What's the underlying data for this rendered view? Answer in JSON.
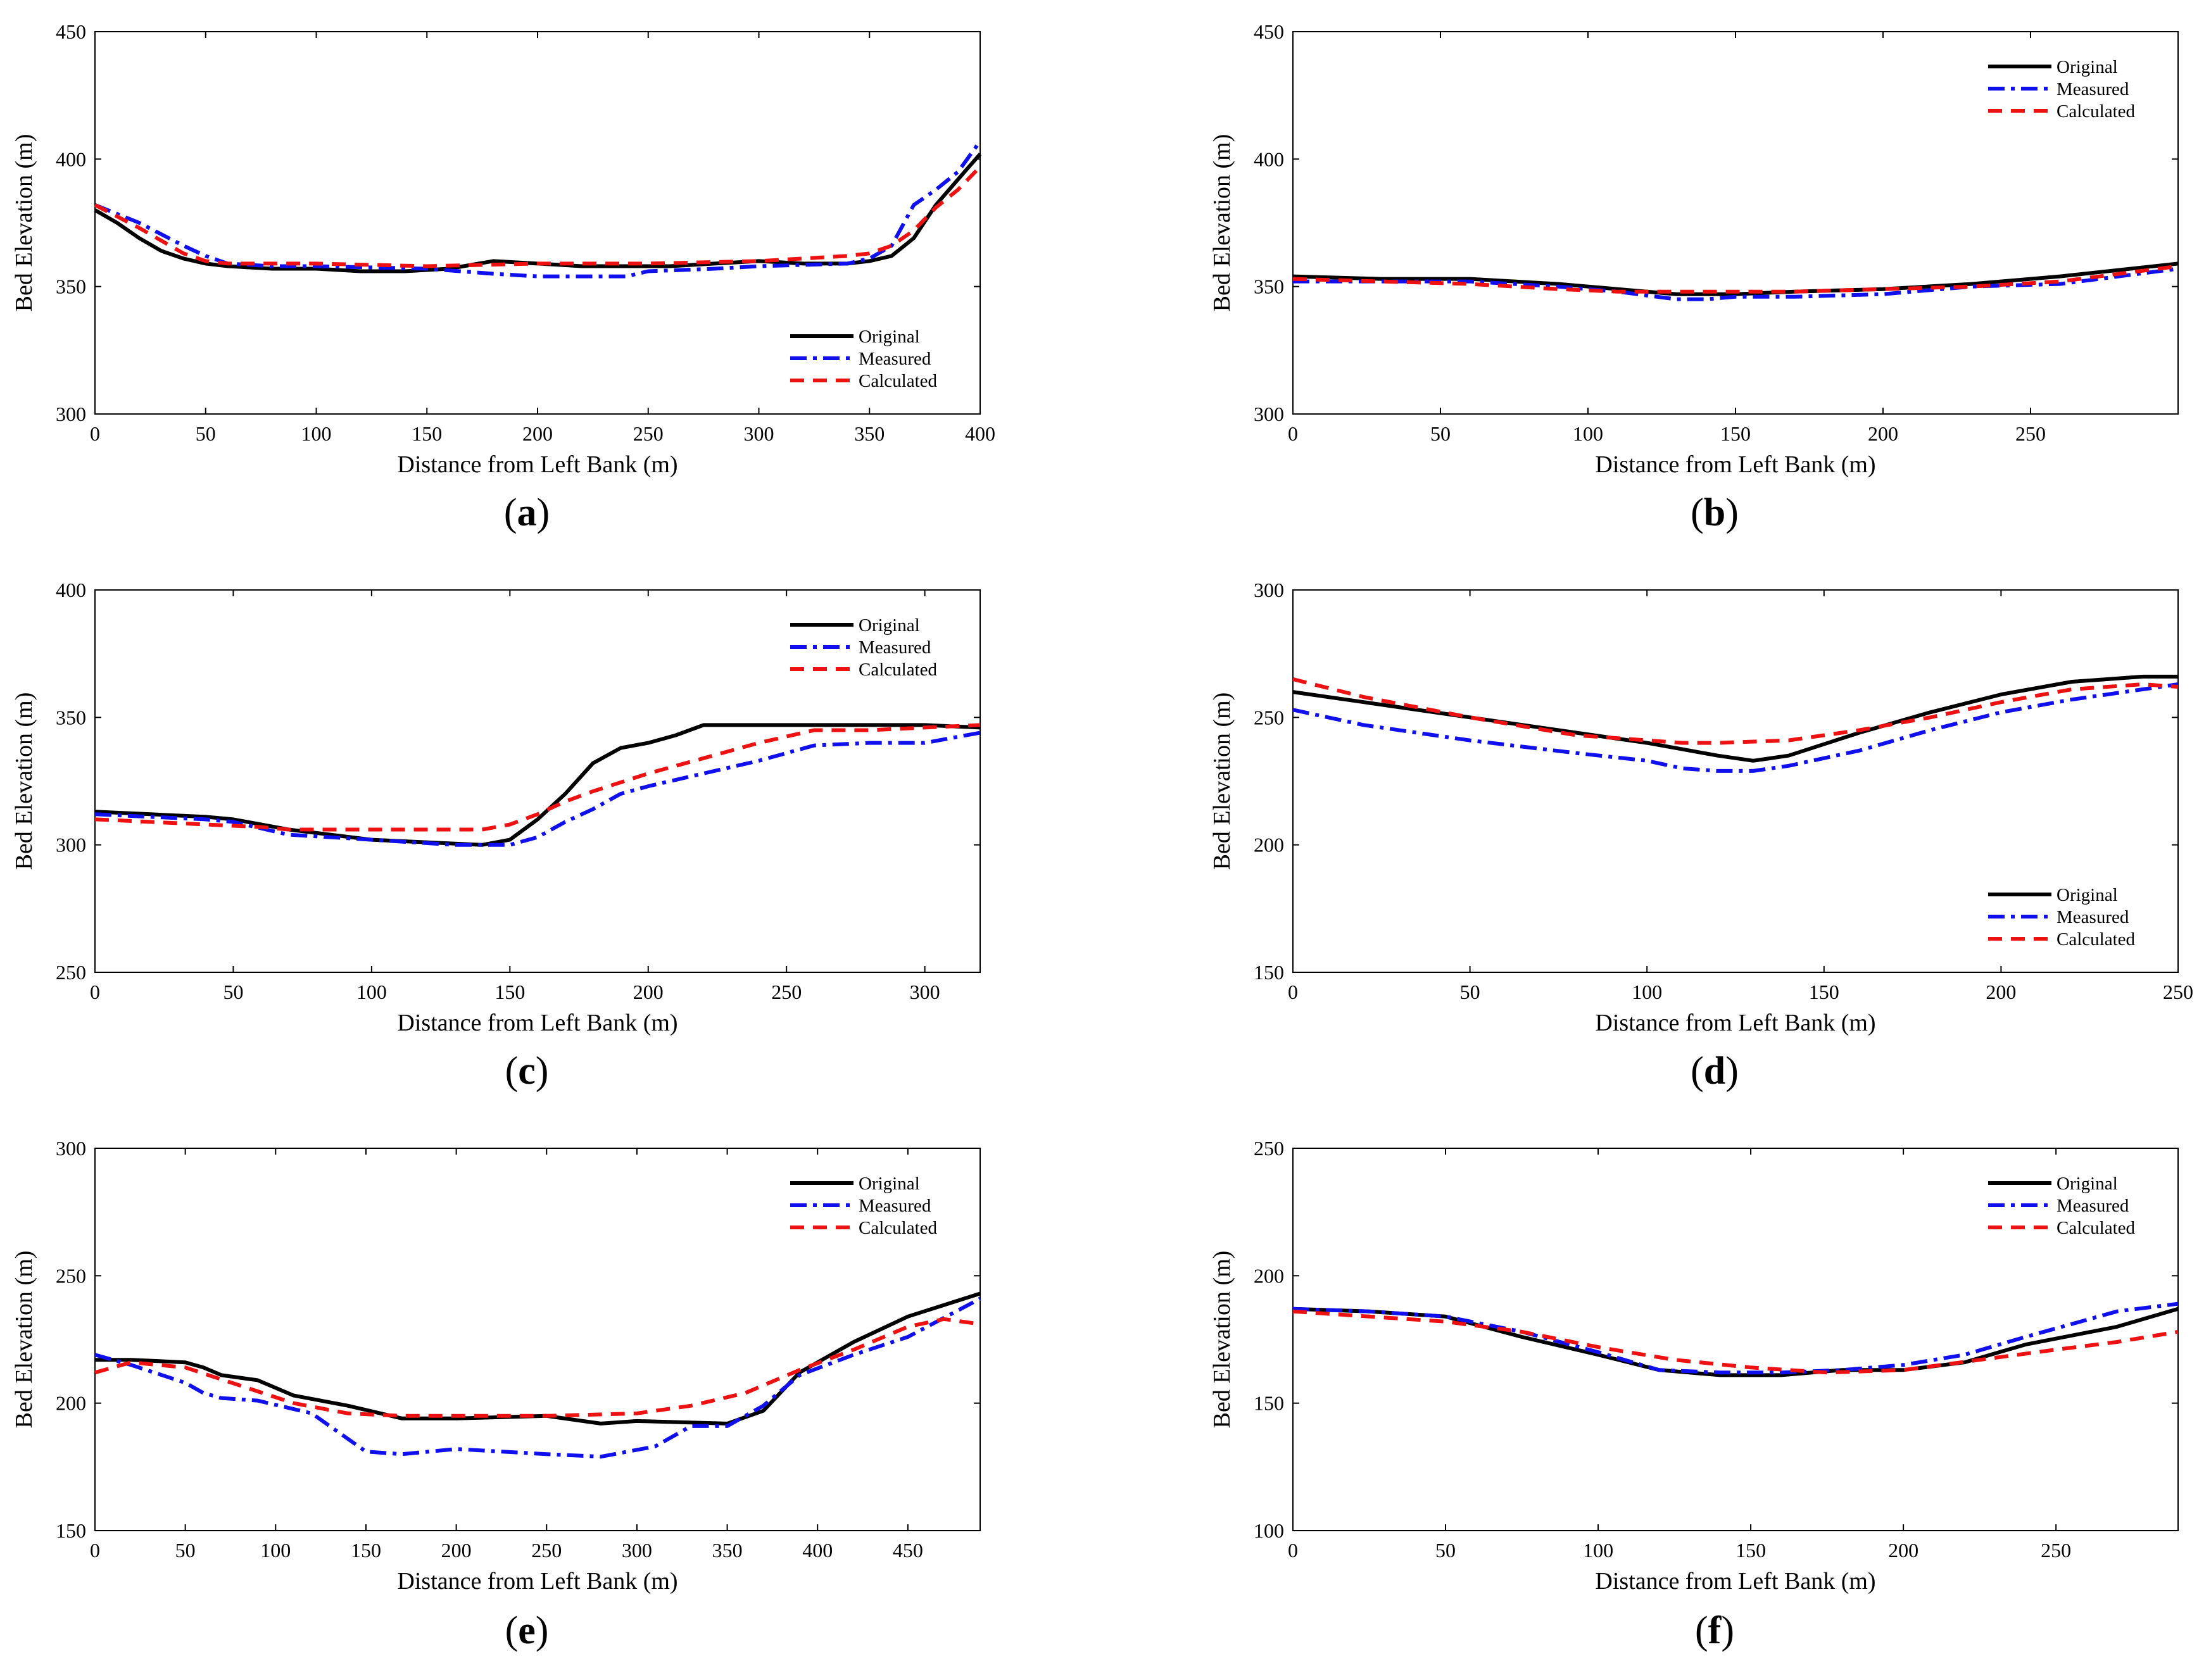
{
  "figure": {
    "series_names": [
      "Original",
      "Measured",
      "Calculated"
    ],
    "colors": {
      "Original": "#000000",
      "Measured": "#1010ee",
      "Calculated": "#ee1111"
    }
  },
  "chart_data": [
    {
      "id": "a",
      "type": "line",
      "panel_label": "a",
      "xlabel": "Distance from Left Bank (m)",
      "ylabel": "Bed Elevation (m)",
      "xlim": [
        0,
        400
      ],
      "ylim": [
        300,
        450
      ],
      "xticks": [
        0,
        50,
        100,
        150,
        200,
        250,
        300,
        350,
        400
      ],
      "yticks": [
        300,
        350,
        400,
        450
      ],
      "legend_position": "bottom-right",
      "series": [
        {
          "name": "Original",
          "x": [
            0,
            10,
            20,
            30,
            40,
            50,
            60,
            80,
            100,
            120,
            140,
            160,
            180,
            200,
            220,
            240,
            260,
            280,
            300,
            320,
            340,
            350,
            360,
            370,
            380,
            390,
            400
          ],
          "y": [
            380,
            375,
            369,
            364,
            361,
            359,
            358,
            357,
            357,
            356,
            356,
            357,
            360,
            359,
            358,
            358,
            358,
            359,
            360,
            359,
            359,
            360,
            362,
            369,
            382,
            392,
            402
          ]
        },
        {
          "name": "Measured",
          "x": [
            0,
            20,
            40,
            50,
            60,
            80,
            100,
            150,
            180,
            200,
            220,
            240,
            250,
            280,
            300,
            340,
            350,
            360,
            370,
            380,
            390,
            400
          ],
          "y": [
            382,
            375,
            366,
            362,
            359,
            358,
            358,
            357,
            355,
            354,
            354,
            354,
            356,
            357,
            358,
            359,
            361,
            366,
            382,
            388,
            395,
            407
          ]
        },
        {
          "name": "Calculated",
          "x": [
            0,
            20,
            40,
            50,
            60,
            80,
            100,
            150,
            200,
            250,
            300,
            320,
            340,
            350,
            360,
            370,
            380,
            390,
            400
          ],
          "y": [
            382,
            373,
            363,
            360,
            359,
            359,
            359,
            358,
            359,
            359,
            360,
            361,
            362,
            363,
            366,
            372,
            381,
            388,
            397
          ]
        }
      ]
    },
    {
      "id": "b",
      "type": "line",
      "panel_label": "b",
      "xlabel": "Distance from Left Bank (m)",
      "ylabel": "Bed Elevation (m)",
      "xlim": [
        0,
        300
      ],
      "ylim": [
        300,
        450
      ],
      "xticks": [
        0,
        50,
        100,
        150,
        200,
        250
      ],
      "yticks": [
        300,
        350,
        400,
        450
      ],
      "legend_position": "top-right",
      "series": [
        {
          "name": "Original",
          "x": [
            0,
            30,
            60,
            90,
            110,
            130,
            150,
            170,
            200,
            230,
            260,
            300
          ],
          "y": [
            354,
            353,
            353,
            351,
            349,
            347,
            347,
            348,
            349,
            351,
            354,
            359
          ]
        },
        {
          "name": "Measured",
          "x": [
            0,
            30,
            60,
            90,
            110,
            130,
            140,
            150,
            170,
            200,
            230,
            260,
            300
          ],
          "y": [
            352,
            352,
            352,
            350,
            348,
            345,
            345,
            346,
            346,
            347,
            350,
            351,
            357
          ]
        },
        {
          "name": "Calculated",
          "x": [
            0,
            30,
            60,
            90,
            110,
            130,
            150,
            170,
            200,
            230,
            260,
            300
          ],
          "y": [
            353,
            352,
            351,
            349,
            348,
            348,
            348,
            348,
            349,
            350,
            352,
            358
          ]
        }
      ]
    },
    {
      "id": "c",
      "type": "line",
      "panel_label": "c",
      "xlabel": "Distance from Left Bank (m)",
      "ylabel": "Bed Elevation (m)",
      "xlim": [
        0,
        320
      ],
      "ylim": [
        250,
        400
      ],
      "xticks": [
        0,
        50,
        100,
        150,
        200,
        250,
        300
      ],
      "yticks": [
        250,
        300,
        350,
        400
      ],
      "legend_position": "top-right",
      "series": [
        {
          "name": "Original",
          "x": [
            0,
            20,
            40,
            50,
            70,
            100,
            140,
            150,
            160,
            170,
            180,
            190,
            200,
            210,
            220,
            240,
            260,
            280,
            300,
            320
          ],
          "y": [
            313,
            312,
            311,
            310,
            306,
            302,
            300,
            302,
            310,
            320,
            332,
            338,
            340,
            343,
            347,
            347,
            347,
            347,
            347,
            346
          ]
        },
        {
          "name": "Measured",
          "x": [
            0,
            20,
            40,
            50,
            70,
            100,
            130,
            150,
            160,
            170,
            180,
            190,
            200,
            220,
            240,
            260,
            280,
            300,
            320
          ],
          "y": [
            312,
            311,
            310,
            309,
            304,
            302,
            300,
            300,
            303,
            309,
            314,
            320,
            323,
            328,
            333,
            339,
            340,
            340,
            344
          ]
        },
        {
          "name": "Calculated",
          "x": [
            0,
            20,
            40,
            60,
            70,
            100,
            140,
            150,
            160,
            170,
            180,
            200,
            220,
            240,
            260,
            280,
            300,
            320
          ],
          "y": [
            310,
            309,
            308,
            307,
            306,
            306,
            306,
            308,
            312,
            317,
            321,
            328,
            334,
            340,
            345,
            345,
            346,
            347
          ]
        }
      ]
    },
    {
      "id": "d",
      "type": "line",
      "panel_label": "d",
      "xlabel": "Distance from Left Bank (m)",
      "ylabel": "Bed Elevation (m)",
      "xlim": [
        0,
        250
      ],
      "ylim": [
        150,
        300
      ],
      "xticks": [
        0,
        50,
        100,
        150,
        200,
        250
      ],
      "yticks": [
        150,
        200,
        250,
        300
      ],
      "legend_position": "bottom-right",
      "series": [
        {
          "name": "Original",
          "x": [
            0,
            20,
            50,
            80,
            100,
            120,
            130,
            140,
            160,
            180,
            200,
            220,
            240,
            250
          ],
          "y": [
            260,
            256,
            250,
            244,
            240,
            235,
            233,
            235,
            244,
            252,
            259,
            264,
            266,
            266
          ]
        },
        {
          "name": "Measured",
          "x": [
            0,
            20,
            50,
            80,
            100,
            110,
            120,
            130,
            140,
            160,
            180,
            200,
            220,
            240,
            250
          ],
          "y": [
            253,
            247,
            241,
            236,
            233,
            230,
            229,
            229,
            231,
            237,
            245,
            252,
            257,
            261,
            263
          ]
        },
        {
          "name": "Calculated",
          "x": [
            0,
            20,
            50,
            80,
            100,
            110,
            120,
            140,
            160,
            180,
            200,
            220,
            240,
            250
          ],
          "y": [
            265,
            258,
            250,
            243,
            241,
            240,
            240,
            241,
            245,
            250,
            256,
            261,
            263,
            262
          ]
        }
      ]
    },
    {
      "id": "e",
      "type": "line",
      "panel_label": "e",
      "xlabel": "Distance from Left Bank (m)",
      "ylabel": "Bed Elevation (m)",
      "xlim": [
        0,
        490
      ],
      "ylim": [
        150,
        300
      ],
      "xticks": [
        0,
        50,
        100,
        150,
        200,
        250,
        300,
        350,
        400,
        450
      ],
      "yticks": [
        150,
        200,
        250,
        300
      ],
      "legend_position": "top-right",
      "series": [
        {
          "name": "Original",
          "x": [
            0,
            20,
            50,
            60,
            70,
            90,
            110,
            140,
            170,
            200,
            250,
            280,
            300,
            350,
            370,
            390,
            420,
            450,
            490
          ],
          "y": [
            217,
            217,
            216,
            214,
            211,
            209,
            203,
            199,
            194,
            194,
            195,
            192,
            193,
            192,
            197,
            212,
            224,
            234,
            243
          ]
        },
        {
          "name": "Measured",
          "x": [
            0,
            20,
            50,
            60,
            70,
            90,
            120,
            150,
            170,
            200,
            250,
            280,
            310,
            330,
            350,
            370,
            390,
            420,
            450,
            490
          ],
          "y": [
            219,
            215,
            208,
            204,
            202,
            201,
            196,
            181,
            180,
            182,
            180,
            179,
            183,
            191,
            191,
            199,
            211,
            219,
            226,
            241
          ]
        },
        {
          "name": "Calculated",
          "x": [
            0,
            20,
            50,
            80,
            110,
            140,
            170,
            200,
            250,
            300,
            330,
            360,
            390,
            420,
            450,
            470,
            490
          ],
          "y": [
            212,
            216,
            214,
            207,
            200,
            196,
            195,
            195,
            195,
            196,
            199,
            204,
            213,
            221,
            230,
            233,
            231
          ]
        }
      ]
    },
    {
      "id": "f",
      "type": "line",
      "panel_label": "f",
      "xlabel": "Distance from Left Bank (m)",
      "ylabel": "Bed Elevation (m)",
      "xlim": [
        0,
        290
      ],
      "ylim": [
        100,
        250
      ],
      "xticks": [
        0,
        50,
        100,
        150,
        200,
        250
      ],
      "yticks": [
        100,
        150,
        200,
        250
      ],
      "legend_position": "top-right",
      "series": [
        {
          "name": "Original",
          "x": [
            0,
            25,
            50,
            75,
            100,
            120,
            140,
            160,
            180,
            200,
            220,
            240,
            270,
            290
          ],
          "y": [
            187,
            186,
            184,
            176,
            169,
            163,
            161,
            161,
            163,
            163,
            166,
            173,
            180,
            187
          ]
        },
        {
          "name": "Measured",
          "x": [
            0,
            25,
            50,
            75,
            100,
            120,
            140,
            160,
            180,
            200,
            220,
            240,
            270,
            290
          ],
          "y": [
            187,
            186,
            184,
            178,
            170,
            163,
            162,
            162,
            163,
            165,
            169,
            176,
            186,
            189
          ]
        },
        {
          "name": "Calculated",
          "x": [
            0,
            25,
            50,
            75,
            100,
            125,
            150,
            175,
            200,
            225,
            250,
            270,
            290
          ],
          "y": [
            186,
            184,
            182,
            178,
            172,
            167,
            164,
            162,
            163,
            167,
            171,
            174,
            178
          ]
        }
      ]
    }
  ]
}
